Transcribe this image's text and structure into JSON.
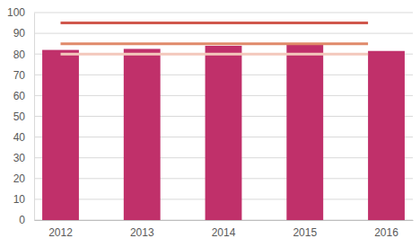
{
  "chart_data": {
    "type": "bar",
    "categories": [
      "2012",
      "2013",
      "2014",
      "2015",
      "2016"
    ],
    "values": [
      82,
      82.5,
      84,
      84.5,
      81.5
    ],
    "color": "#c0306a",
    "ylim": [
      0,
      100
    ],
    "yticks": [
      0,
      10,
      20,
      30,
      40,
      50,
      60,
      70,
      80,
      90,
      100
    ],
    "grid": true,
    "reference_lines": [
      {
        "value": 95,
        "color": "#d0574c"
      },
      {
        "value": 85,
        "color": "#e08a6a"
      },
      {
        "value": 80,
        "color": "#f3c8bc"
      }
    ]
  }
}
